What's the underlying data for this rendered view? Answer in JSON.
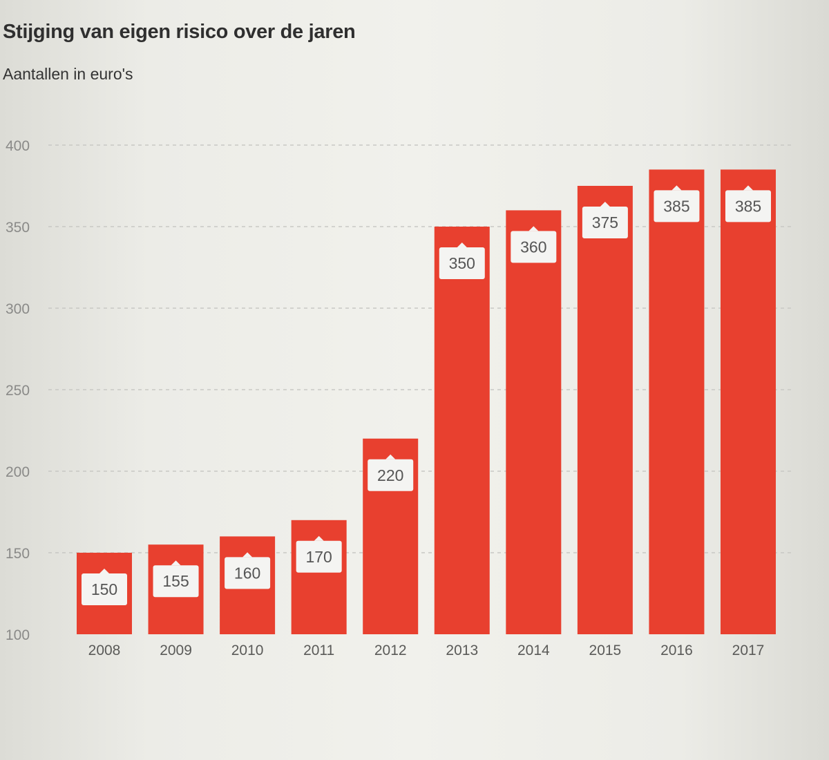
{
  "chart_data": {
    "type": "bar",
    "title": "Stijging van eigen risico over de jaren",
    "subtitle": "Aantallen in euro's",
    "xlabel": "",
    "ylabel": "",
    "categories": [
      "2008",
      "2009",
      "2010",
      "2011",
      "2012",
      "2013",
      "2014",
      "2015",
      "2016",
      "2017"
    ],
    "values": [
      150,
      155,
      160,
      170,
      220,
      350,
      360,
      375,
      385,
      385
    ],
    "ylim": [
      100,
      400
    ],
    "yticks": [
      100,
      150,
      200,
      250,
      300,
      350,
      400
    ],
    "grid": true,
    "data_labels": true,
    "colors": {
      "bar": "#e8402f",
      "label_box": "#f4f4f2",
      "grid": "#c8c8c4"
    }
  }
}
